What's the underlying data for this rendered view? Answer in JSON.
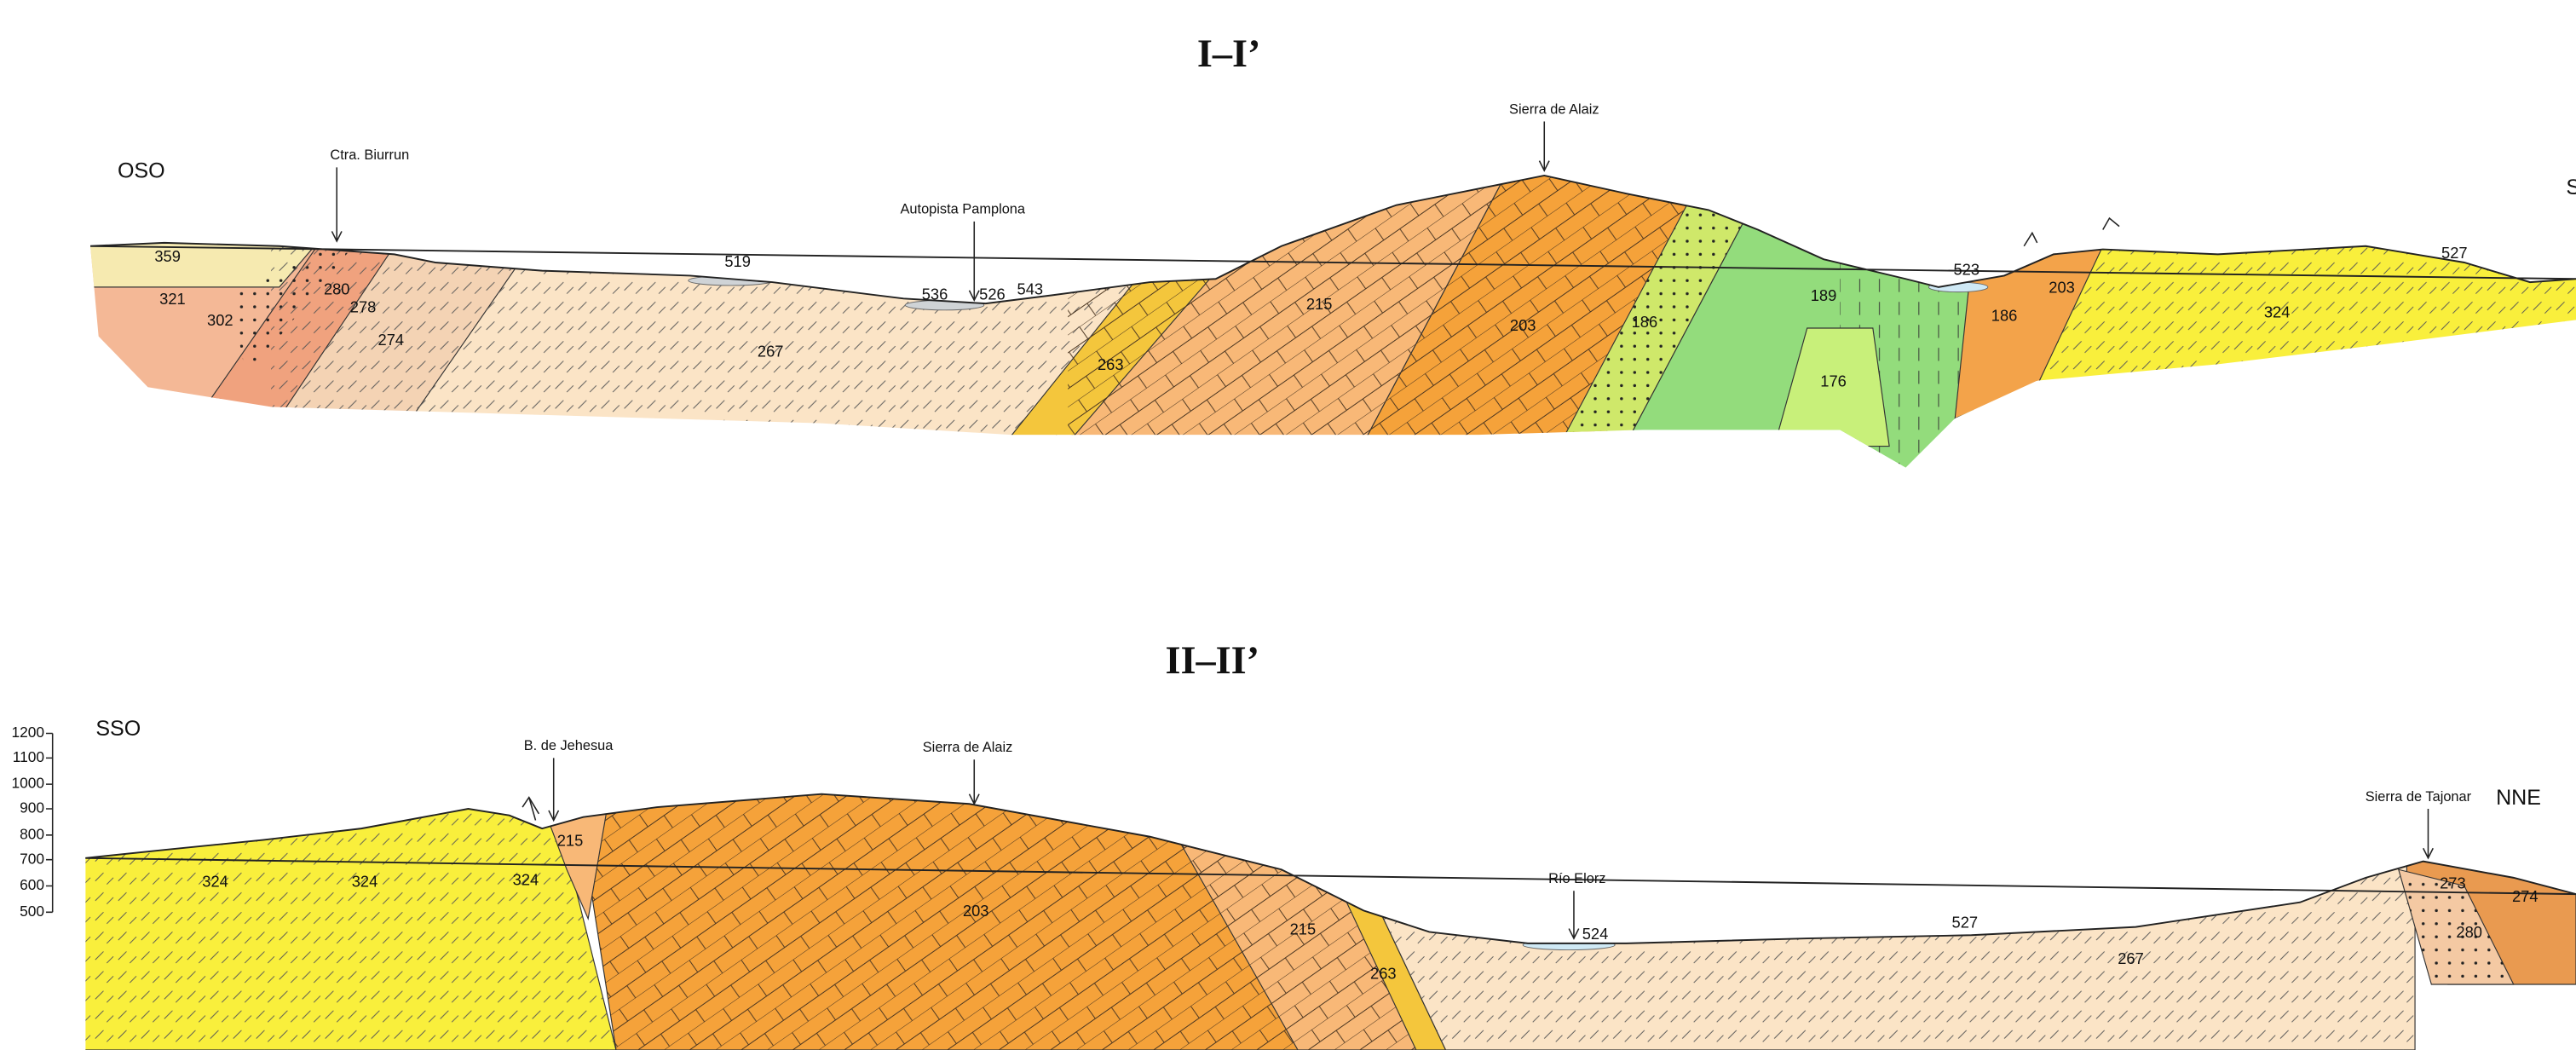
{
  "sections": [
    {
      "title": "I–I’",
      "left_label": "OSO",
      "right_label": "S",
      "places": [
        "Ctra. Biurrun",
        "Autopista Pamplona",
        "Sierra de Alaiz"
      ],
      "units": [
        "359",
        "321",
        "302",
        "280",
        "278",
        "274",
        "267",
        "519",
        "536",
        "526",
        "543",
        "263",
        "215",
        "203",
        "186",
        "189",
        "176",
        "523",
        "186",
        "203",
        "324",
        "527"
      ]
    },
    {
      "title": "II–II’",
      "left_label": "SSO",
      "right_label": "NNE",
      "places": [
        "B. de Jehesua",
        "Sierra de Alaiz",
        "Río Elorz",
        "Sierra de Tajonar"
      ],
      "units": [
        "324",
        "324",
        "324",
        "215",
        "203",
        "215",
        "263",
        "524",
        "527",
        "267",
        "273",
        "274",
        "280"
      ],
      "scale_ticks": [
        1200,
        1100,
        1000,
        900,
        800,
        700,
        600,
        500
      ]
    }
  ]
}
